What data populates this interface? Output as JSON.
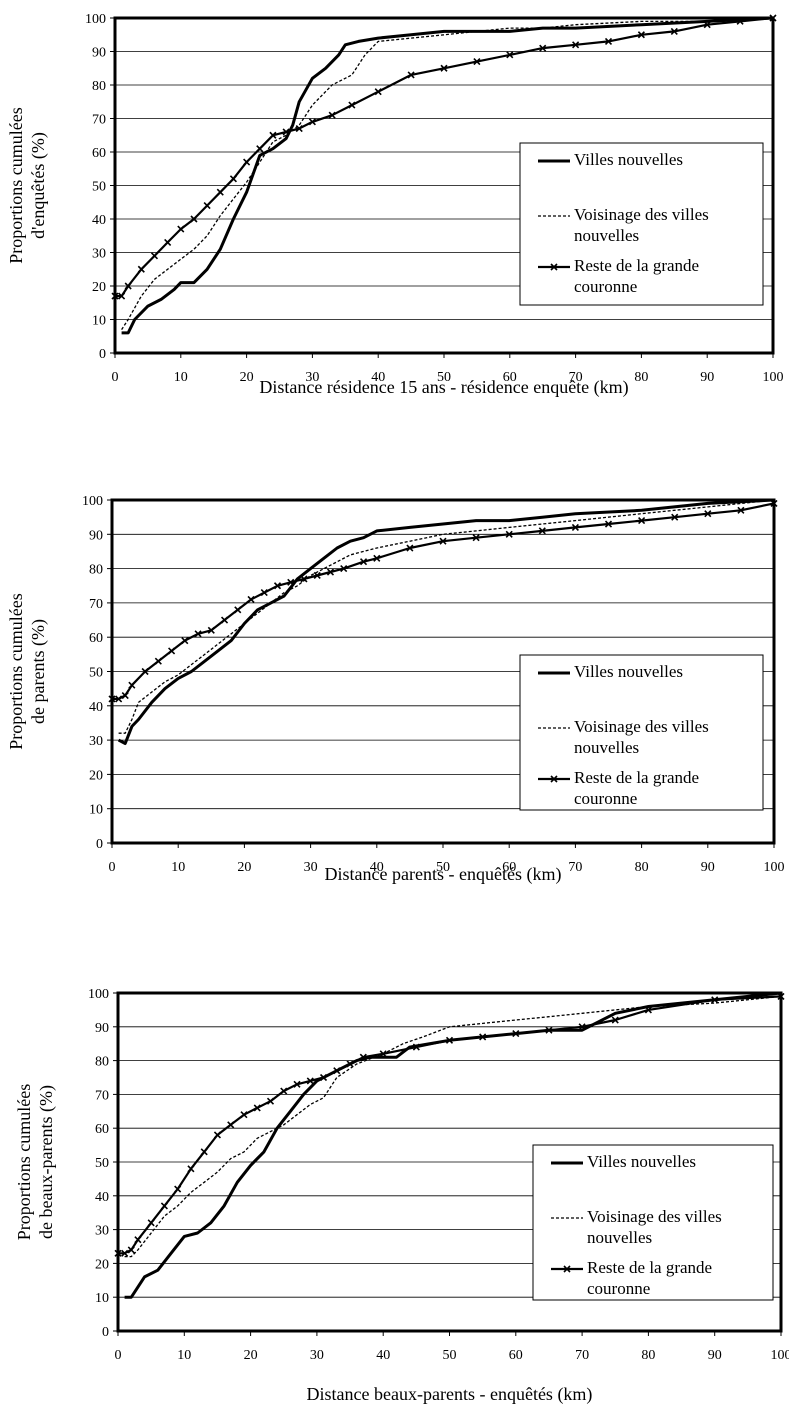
{
  "chart_data": [
    {
      "type": "line",
      "xlabel": "Distance résidence 15 ans - résidence enquête (km)",
      "ylabel_lines": [
        "Proportions cumulées",
        "d'enquêtés (%)"
      ],
      "xlim": [
        0,
        100
      ],
      "ylim": [
        0,
        100
      ],
      "xticks": [
        "0",
        "10",
        "20",
        "30",
        "40",
        "50",
        "60",
        "70",
        "80",
        "90",
        "100"
      ],
      "yticks": [
        "0",
        "10",
        "20",
        "30",
        "40",
        "50",
        "60",
        "70",
        "80",
        "90",
        "100"
      ],
      "grid": "horizontal",
      "legend_position": "right-center",
      "series": [
        {
          "name": "Villes nouvelles",
          "legend_lines": [
            "Villes nouvelles"
          ],
          "x": [
            1,
            2,
            3,
            5,
            7,
            9,
            10,
            12,
            14,
            16,
            18,
            20,
            22,
            24,
            26,
            27,
            28,
            30,
            32,
            34,
            35,
            37,
            40,
            45,
            50,
            55,
            60,
            65,
            70,
            80,
            90,
            100
          ],
          "y": [
            6,
            6,
            10,
            14,
            16,
            19,
            21,
            21,
            25,
            31,
            40,
            48,
            59,
            61,
            64,
            68,
            75,
            82,
            85,
            89,
            92,
            93,
            94,
            95,
            96,
            96,
            96,
            97,
            97,
            98,
            99,
            100
          ]
        },
        {
          "name": "Voisinage des villes nouvelles",
          "legend_lines": [
            "Voisinage des villes",
            "nouvelles"
          ],
          "x": [
            1,
            2,
            4,
            6,
            8,
            10,
            12,
            14,
            16,
            18,
            20,
            22,
            24,
            26,
            28,
            30,
            33,
            36,
            38,
            40,
            45,
            50,
            55,
            60,
            65,
            70,
            80,
            90,
            100
          ],
          "y": [
            7,
            10,
            17,
            22,
            25,
            28,
            31,
            35,
            41,
            46,
            51,
            57,
            63,
            65,
            68,
            74,
            80,
            83,
            89,
            93,
            94,
            95,
            96,
            97,
            97,
            98,
            99,
            99,
            100
          ]
        },
        {
          "name": "Reste de la grande couronne",
          "legend_lines": [
            "Reste de la grande",
            "couronne"
          ],
          "x": [
            0,
            1,
            2,
            4,
            6,
            8,
            10,
            12,
            14,
            16,
            18,
            20,
            22,
            24,
            26,
            28,
            30,
            33,
            36,
            40,
            45,
            50,
            55,
            60,
            65,
            70,
            75,
            80,
            85,
            90,
            95,
            100
          ],
          "y": [
            17,
            17,
            20,
            25,
            29,
            33,
            37,
            40,
            44,
            48,
            52,
            57,
            61,
            65,
            66,
            67,
            69,
            71,
            74,
            78,
            83,
            85,
            87,
            89,
            91,
            92,
            93,
            95,
            96,
            98,
            99,
            100
          ]
        }
      ]
    },
    {
      "type": "line",
      "xlabel": "Distance  parents - enquêtés (km)",
      "ylabel_lines": [
        "Proportions cumulées",
        "de parents (%)"
      ],
      "xlim": [
        0,
        100
      ],
      "ylim": [
        0,
        100
      ],
      "xticks": [
        "0",
        "10",
        "20",
        "30",
        "40",
        "50",
        "60",
        "70",
        "80",
        "90",
        "100"
      ],
      "yticks": [
        "0",
        "10",
        "20",
        "30",
        "40",
        "50",
        "60",
        "70",
        "80",
        "90",
        "100"
      ],
      "grid": "horizontal",
      "legend_position": "right-center",
      "series": [
        {
          "name": "Villes nouvelles",
          "legend_lines": [
            "Villes nouvelles"
          ],
          "x": [
            1,
            2,
            3,
            4,
            6,
            8,
            10,
            12,
            14,
            16,
            18,
            20,
            22,
            24,
            26,
            28,
            30,
            32,
            34,
            36,
            38,
            40,
            45,
            50,
            55,
            60,
            65,
            70,
            80,
            90,
            100
          ],
          "y": [
            30,
            29,
            34,
            36,
            41,
            45,
            48,
            50,
            53,
            56,
            59,
            64,
            68,
            70,
            72,
            77,
            80,
            83,
            86,
            88,
            89,
            91,
            92,
            93,
            94,
            94,
            95,
            96,
            97,
            99,
            100
          ]
        },
        {
          "name": "Voisinage des villes nouvelles",
          "legend_lines": [
            "Voisinage des villes",
            "nouvelles"
          ],
          "x": [
            1,
            2,
            3,
            4,
            6,
            8,
            10,
            12,
            14,
            16,
            18,
            20,
            22,
            24,
            26,
            28,
            30,
            33,
            36,
            40,
            45,
            50,
            55,
            60,
            70,
            80,
            90,
            100
          ],
          "y": [
            32,
            32,
            36,
            41,
            44,
            47,
            49,
            52,
            55,
            58,
            61,
            64,
            67,
            70,
            73,
            75,
            78,
            81,
            84,
            86,
            88,
            90,
            91,
            92,
            94,
            96,
            98,
            100
          ]
        },
        {
          "name": "Reste de la grande couronne",
          "legend_lines": [
            "Reste de la grande",
            "couronne"
          ],
          "x": [
            0,
            1,
            2,
            3,
            5,
            7,
            9,
            11,
            13,
            15,
            17,
            19,
            21,
            23,
            25,
            27,
            29,
            31,
            33,
            35,
            38,
            40,
            45,
            50,
            55,
            60,
            65,
            70,
            75,
            80,
            85,
            90,
            95,
            100
          ],
          "y": [
            42,
            42,
            43,
            46,
            50,
            53,
            56,
            59,
            61,
            62,
            65,
            68,
            71,
            73,
            75,
            76,
            77,
            78,
            79,
            80,
            82,
            83,
            86,
            88,
            89,
            90,
            91,
            92,
            93,
            94,
            95,
            96,
            97,
            99
          ]
        }
      ]
    },
    {
      "type": "line",
      "xlabel": "Distance beaux-parents - enquêtés (km)",
      "ylabel_lines": [
        "Proportions cumulées",
        "de beaux-parents (%)"
      ],
      "xlim": [
        0,
        100
      ],
      "ylim": [
        0,
        100
      ],
      "xticks": [
        "0",
        "10",
        "20",
        "30",
        "40",
        "50",
        "60",
        "70",
        "80",
        "90",
        "100"
      ],
      "yticks": [
        "0",
        "10",
        "20",
        "30",
        "40",
        "50",
        "60",
        "70",
        "80",
        "90",
        "100"
      ],
      "grid": "horizontal",
      "legend_position": "right-center",
      "series": [
        {
          "name": "Villes nouvelles",
          "legend_lines": [
            "Villes nouvelles"
          ],
          "x": [
            1,
            2,
            3,
            4,
            6,
            8,
            10,
            12,
            14,
            16,
            18,
            20,
            22,
            24,
            26,
            28,
            30,
            33,
            36,
            38,
            40,
            42,
            44,
            50,
            55,
            60,
            65,
            70,
            75,
            80,
            90,
            100
          ],
          "y": [
            10,
            10,
            13,
            16,
            18,
            23,
            28,
            29,
            32,
            37,
            44,
            49,
            53,
            60,
            65,
            70,
            74,
            77,
            80,
            81,
            81,
            81,
            84,
            86,
            87,
            88,
            89,
            89,
            94,
            96,
            98,
            100
          ]
        },
        {
          "name": "Voisinage des villes nouvelles",
          "legend_lines": [
            "Voisinage des villes",
            "nouvelles"
          ],
          "x": [
            1,
            2,
            3,
            5,
            7,
            9,
            11,
            13,
            15,
            17,
            19,
            21,
            23,
            25,
            27,
            29,
            31,
            33,
            36,
            40,
            43,
            46,
            50,
            55,
            60,
            65,
            70,
            75,
            80,
            90,
            100
          ],
          "y": [
            22,
            22,
            24,
            29,
            34,
            37,
            41,
            44,
            47,
            51,
            53,
            57,
            59,
            61,
            64,
            67,
            69,
            75,
            79,
            82,
            85,
            87,
            90,
            91,
            92,
            93,
            94,
            95,
            96,
            97,
            99
          ]
        },
        {
          "name": "Reste de la grande couronne",
          "legend_lines": [
            "Reste de la grande",
            "couronne"
          ],
          "x": [
            0,
            1,
            2,
            3,
            5,
            7,
            9,
            11,
            13,
            15,
            17,
            19,
            21,
            23,
            25,
            27,
            29,
            31,
            33,
            35,
            37,
            40,
            45,
            50,
            55,
            60,
            65,
            70,
            75,
            80,
            90,
            100
          ],
          "y": [
            23,
            23,
            24,
            27,
            32,
            37,
            42,
            48,
            53,
            58,
            61,
            64,
            66,
            68,
            71,
            73,
            74,
            75,
            77,
            79,
            81,
            82,
            84,
            86,
            87,
            88,
            89,
            90,
            92,
            95,
            98,
            99
          ]
        }
      ]
    }
  ]
}
